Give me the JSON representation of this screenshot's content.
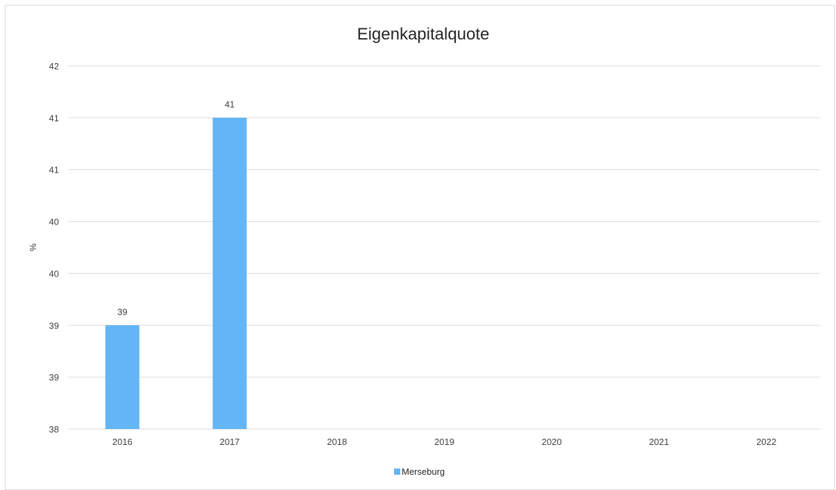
{
  "chart_data": {
    "type": "bar",
    "title": "Eigenkapitalquote",
    "xlabel": "",
    "ylabel": "%",
    "categories": [
      "2016",
      "2017",
      "2018",
      "2019",
      "2020",
      "2021",
      "2022"
    ],
    "series": [
      {
        "name": "Merseburg",
        "values": [
          39,
          41,
          null,
          null,
          null,
          null,
          null
        ],
        "color": "#63b5f6"
      }
    ],
    "data_labels": [
      "39",
      "41",
      "",
      "",
      "",
      "",
      ""
    ],
    "ylim": [
      38,
      41.5
    ],
    "y_tick_values": [
      38,
      38.5,
      39,
      39.5,
      40,
      40.5,
      41,
      41.5
    ],
    "y_tick_labels": [
      "38",
      "39",
      "39",
      "40",
      "40",
      "41",
      "41",
      "42"
    ],
    "grid": true,
    "legend_position": "bottom",
    "colors": {
      "gridline": "#d9d9d9",
      "axis_text": "#404040"
    }
  }
}
